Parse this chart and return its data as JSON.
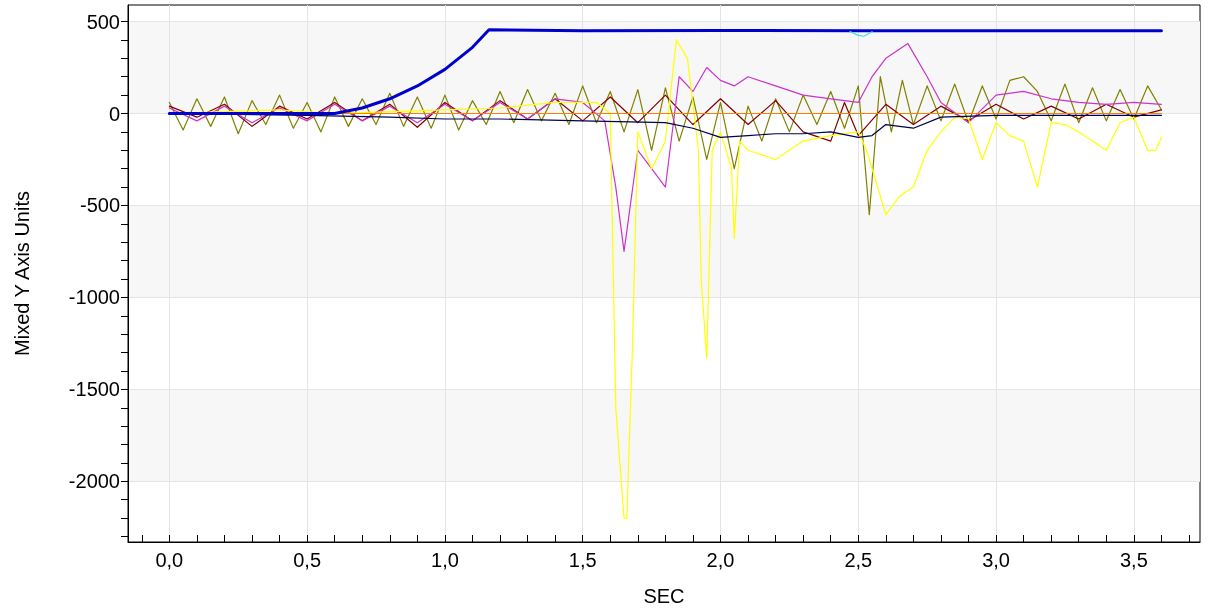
{
  "chart_data": {
    "type": "line",
    "xlabel": "SEC",
    "ylabel": "Mixed Y Axis Units",
    "grid": true,
    "marker": "none",
    "xlim": [
      -0.15,
      3.74
    ],
    "ylim": [
      -2330,
      590
    ],
    "xticks": [
      {
        "value": -0.1,
        "label": null
      },
      {
        "value": 0,
        "label": "0,0"
      },
      {
        "value": 0.1,
        "label": null
      },
      {
        "value": 0.2,
        "label": null
      },
      {
        "value": 0.3,
        "label": null
      },
      {
        "value": 0.4,
        "label": null
      },
      {
        "value": 0.5,
        "label": "0,5"
      },
      {
        "value": 0.6,
        "label": null
      },
      {
        "value": 0.7,
        "label": null
      },
      {
        "value": 0.8,
        "label": null
      },
      {
        "value": 0.9,
        "label": null
      },
      {
        "value": 1,
        "label": "1,0"
      },
      {
        "value": 1.1,
        "label": null
      },
      {
        "value": 1.2,
        "label": null
      },
      {
        "value": 1.3,
        "label": null
      },
      {
        "value": 1.4,
        "label": null
      },
      {
        "value": 1.5,
        "label": "1,5"
      },
      {
        "value": 1.6,
        "label": null
      },
      {
        "value": 1.7,
        "label": null
      },
      {
        "value": 1.8,
        "label": null
      },
      {
        "value": 1.9,
        "label": null
      },
      {
        "value": 2,
        "label": "2,0"
      },
      {
        "value": 2.1,
        "label": null
      },
      {
        "value": 2.2,
        "label": null
      },
      {
        "value": 2.3,
        "label": null
      },
      {
        "value": 2.4,
        "label": null
      },
      {
        "value": 2.5,
        "label": "2,5"
      },
      {
        "value": 2.6,
        "label": null
      },
      {
        "value": 2.7,
        "label": null
      },
      {
        "value": 2.8,
        "label": null
      },
      {
        "value": 2.9,
        "label": null
      },
      {
        "value": 3,
        "label": "3,0"
      },
      {
        "value": 3.1,
        "label": null
      },
      {
        "value": 3.2,
        "label": null
      },
      {
        "value": 3.3,
        "label": null
      },
      {
        "value": 3.4,
        "label": null
      },
      {
        "value": 3.5,
        "label": "3,5"
      },
      {
        "value": 3.6,
        "label": null
      },
      {
        "value": 3.7,
        "label": null
      }
    ],
    "yticks": [
      {
        "value": -2300,
        "label": null
      },
      {
        "value": -2200,
        "label": null
      },
      {
        "value": -2100,
        "label": null
      },
      -2000,
      {
        "value": -1900,
        "label": null
      },
      {
        "value": -1800,
        "label": null
      },
      {
        "value": -1700,
        "label": null
      },
      {
        "value": -1600,
        "label": null
      },
      -1500,
      {
        "value": -1400,
        "label": null
      },
      {
        "value": -1300,
        "label": null
      },
      {
        "value": -1200,
        "label": null
      },
      {
        "value": -1100,
        "label": null
      },
      -1000,
      {
        "value": -900,
        "label": null
      },
      {
        "value": -800,
        "label": null
      },
      {
        "value": -700,
        "label": null
      },
      {
        "value": -600,
        "label": null
      },
      -500,
      {
        "value": -400,
        "label": null
      },
      {
        "value": -300,
        "label": null
      },
      {
        "value": -200,
        "label": null
      },
      {
        "value": -100,
        "label": null
      },
      0,
      {
        "value": 100,
        "label": null
      },
      {
        "value": 200,
        "label": null
      },
      {
        "value": 300,
        "label": null
      },
      {
        "value": 400,
        "label": null
      },
      500
    ],
    "series": [
      {
        "color": "#808000",
        "line_style": "solid",
        "x": [
          0,
          0.05,
          0.1,
          0.15,
          0.2,
          0.25,
          0.3,
          0.35,
          0.4,
          0.45,
          0.5,
          0.55,
          0.6,
          0.65,
          0.7,
          0.75,
          0.8,
          0.85,
          0.9,
          0.95,
          1,
          1.05,
          1.1,
          1.15,
          1.2,
          1.25,
          1.3,
          1.35,
          1.4,
          1.45,
          1.5,
          1.55,
          1.6,
          1.65,
          1.7,
          1.75,
          1.8,
          1.85,
          1.9,
          1.95,
          2,
          2.05,
          2.1,
          2.15,
          2.2,
          2.25,
          2.3,
          2.35,
          2.4,
          2.45,
          2.5,
          2.54,
          2.58,
          2.62,
          2.66,
          2.7,
          2.75,
          2.8,
          2.85,
          2.9,
          2.95,
          3,
          3.05,
          3.1,
          3.15,
          3.2,
          3.25,
          3.3,
          3.35,
          3.4,
          3.45,
          3.5,
          3.55,
          3.6
        ],
        "values": [
          60,
          -90,
          80,
          -70,
          90,
          -110,
          70,
          -60,
          100,
          -80,
          60,
          -100,
          90,
          -70,
          80,
          -60,
          110,
          -70,
          90,
          -80,
          100,
          -90,
          70,
          -60,
          120,
          -50,
          130,
          -40,
          110,
          -60,
          150,
          -50,
          120,
          -100,
          130,
          -200,
          140,
          -150,
          90,
          -250,
          60,
          -300,
          40,
          -150,
          80,
          -100,
          100,
          -60,
          120,
          -80,
          150,
          -550,
          200,
          -100,
          180,
          -60,
          150,
          -40,
          160,
          -50,
          150,
          -30,
          180,
          200,
          120,
          -40,
          160,
          -50,
          140,
          -40,
          130,
          -30,
          150,
          20
        ]
      },
      {
        "color": "#800000",
        "line_style": "solid",
        "x": [
          0,
          0.1,
          0.2,
          0.3,
          0.4,
          0.5,
          0.6,
          0.7,
          0.8,
          0.9,
          1,
          1.1,
          1.2,
          1.3,
          1.4,
          1.5,
          1.6,
          1.7,
          1.8,
          1.9,
          2,
          2.1,
          2.2,
          2.3,
          2.4,
          2.45,
          2.5,
          2.6,
          2.7,
          2.8,
          2.9,
          3,
          3.1,
          3.2,
          3.3,
          3.4,
          3.5,
          3.6
        ],
        "values": [
          40,
          -20,
          50,
          -70,
          40,
          -30,
          60,
          -40,
          50,
          -75,
          60,
          -40,
          70,
          -30,
          80,
          -40,
          90,
          -50,
          100,
          -60,
          80,
          -60,
          70,
          -100,
          -150,
          60,
          -120,
          50,
          -60,
          40,
          -40,
          50,
          -30,
          40,
          -30,
          50,
          -20,
          20
        ]
      },
      {
        "color": "#cc33cc",
        "line_style": "solid",
        "x": [
          0,
          0.1,
          0.2,
          0.3,
          0.4,
          0.5,
          0.6,
          0.7,
          0.8,
          0.9,
          1,
          1.1,
          1.2,
          1.3,
          1.4,
          1.5,
          1.58,
          1.62,
          1.65,
          1.7,
          1.75,
          1.8,
          1.85,
          1.9,
          1.95,
          2,
          2.05,
          2.1,
          2.2,
          2.3,
          2.4,
          2.5,
          2.55,
          2.6,
          2.68,
          2.75,
          2.8,
          2.9,
          3,
          3.1,
          3.2,
          3.3,
          3.4,
          3.5,
          3.6
        ],
        "values": [
          30,
          -40,
          40,
          -50,
          30,
          -40,
          50,
          -40,
          40,
          -50,
          50,
          -40,
          60,
          -30,
          80,
          60,
          -40,
          -400,
          -750,
          -200,
          -300,
          -400,
          200,
          120,
          250,
          180,
          150,
          200,
          150,
          100,
          80,
          60,
          200,
          300,
          380,
          200,
          60,
          -50,
          100,
          120,
          80,
          60,
          50,
          60,
          50
        ]
      },
      {
        "color": "#ffff00",
        "line_style": "solid",
        "x": [
          0,
          0.2,
          0.4,
          0.6,
          0.8,
          1,
          1.2,
          1.4,
          1.55,
          1.6,
          1.62,
          1.65,
          1.66,
          1.68,
          1.7,
          1.75,
          1.8,
          1.84,
          1.88,
          1.92,
          1.93,
          1.95,
          1.97,
          2,
          2.04,
          2.05,
          2.07,
          2.1,
          2.2,
          2.3,
          2.4,
          2.5,
          2.53,
          2.6,
          2.65,
          2.7,
          2.75,
          2.8,
          2.85,
          2.9,
          2.95,
          3,
          3.05,
          3.1,
          3.15,
          3.2,
          3.25,
          3.3,
          3.35,
          3.4,
          3.45,
          3.5,
          3.55,
          3.58,
          3.6
        ],
        "values": [
          0,
          10,
          20,
          0,
          10,
          20,
          30,
          60,
          60,
          0,
          -1600,
          -2200,
          -2200,
          -1300,
          -100,
          -300,
          -150,
          400,
          300,
          -200,
          -900,
          -1330,
          -200,
          -100,
          -300,
          -680,
          -150,
          -200,
          -250,
          -150,
          -120,
          -100,
          -200,
          -550,
          -450,
          -400,
          -200,
          -100,
          -20,
          -30,
          -250,
          -50,
          -120,
          -150,
          -400,
          -50,
          -60,
          -100,
          -150,
          -200,
          -50,
          -20,
          -200,
          -200,
          -130
        ]
      },
      {
        "color": "#000050",
        "line_style": "solid",
        "x": [
          0,
          0.5,
          0.8,
          1,
          1.2,
          1.5,
          1.8,
          1.9,
          2,
          2.1,
          2.2,
          2.3,
          2.4,
          2.5,
          2.55,
          2.6,
          2.7,
          2.8,
          3,
          3.3,
          3.6
        ],
        "values": [
          0,
          -10,
          -20,
          -30,
          -30,
          -40,
          -50,
          -80,
          -130,
          -120,
          -110,
          -110,
          -100,
          -130,
          -120,
          -60,
          -80,
          -20,
          -10,
          -10,
          -10
        ]
      },
      {
        "color": "#ff8000",
        "line_style": "solid",
        "x": [
          0,
          1,
          2,
          3,
          3.6
        ],
        "values": [
          0,
          0,
          0,
          0,
          0
        ]
      },
      {
        "color": "#0000cc",
        "line_style": "solid",
        "x": [
          0,
          0.6,
          0.7,
          0.8,
          0.9,
          1,
          1.1,
          1.16,
          1.5,
          2,
          2.5,
          3,
          3.6
        ],
        "values": [
          0,
          0,
          30,
          80,
          150,
          240,
          360,
          455,
          450,
          452,
          450,
          450,
          450
        ]
      },
      {
        "color": "#40e0e0",
        "line_style": "solid",
        "x": [
          2.47,
          2.5,
          2.52,
          2.55
        ],
        "values": [
          445,
          425,
          420,
          445
        ]
      }
    ]
  }
}
